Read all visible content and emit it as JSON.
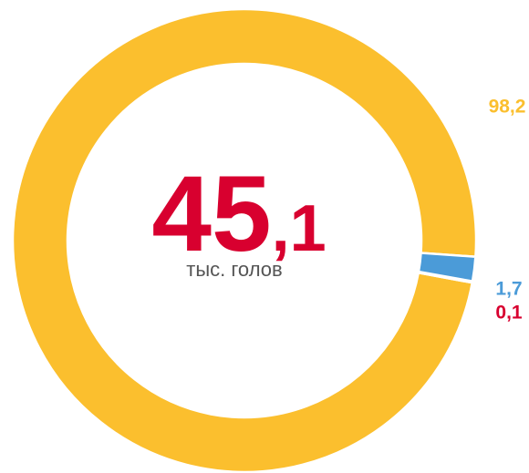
{
  "chart_data": {
    "type": "donut",
    "center_value": "45,1",
    "center_label": "тыс. голов",
    "categories": [
      null,
      null,
      null
    ],
    "values": [
      98.2,
      1.7,
      0.1
    ],
    "value_labels": [
      "98,2",
      "1,7",
      "0,1"
    ],
    "colors": [
      "#fbbf2e",
      "#4b9bd8",
      "#d8002f"
    ]
  }
}
